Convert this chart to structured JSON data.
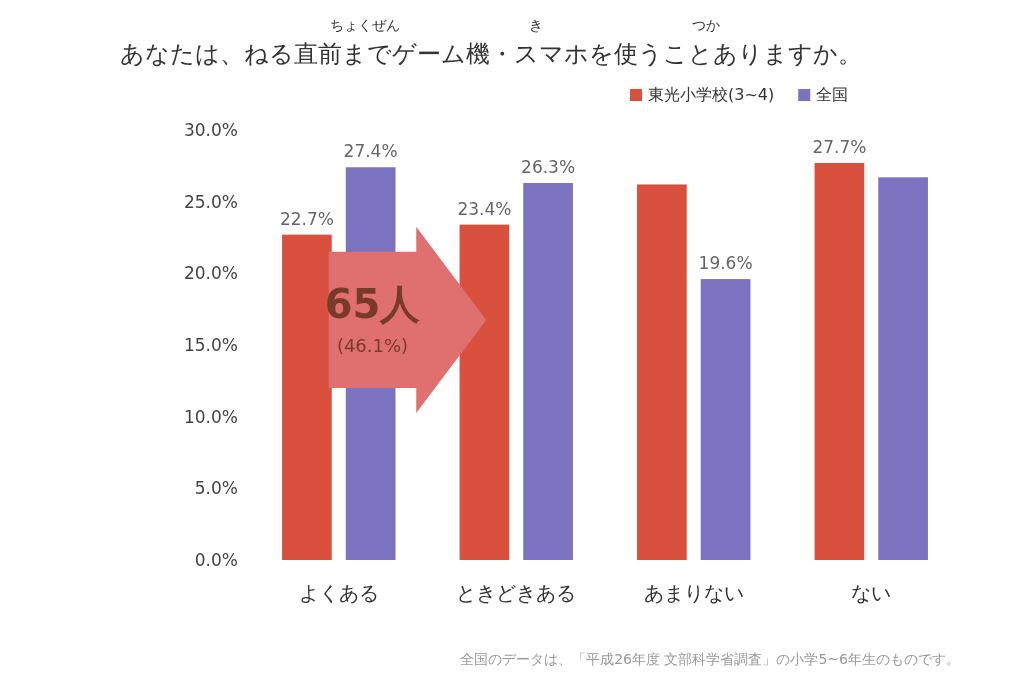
{
  "chart_data": {
    "type": "bar",
    "title": "あなたは、ねる直前までゲーム機・スマホを使うことありますか。",
    "categories": [
      "よくある",
      "ときどきある",
      "あまりない",
      "ない"
    ],
    "series": [
      {
        "name": "東光小学校(3~4)",
        "color": "#d9503f",
        "values": [
          22.7,
          23.4,
          26.2,
          27.7
        ],
        "value_labels": [
          "22.7%",
          "23.4%",
          null,
          "27.7%"
        ]
      },
      {
        "name": "全国",
        "color": "#7b72c0",
        "values": [
          27.4,
          26.3,
          19.6,
          26.7
        ],
        "value_labels": [
          "27.4%",
          "26.3%",
          "19.6%",
          null
        ]
      }
    ],
    "ylim": [
      0,
      30
    ],
    "yticks": [
      {
        "value": 0,
        "label": "0.0%"
      },
      {
        "value": 5,
        "label": "5.0%"
      },
      {
        "value": 10,
        "label": "10.0%"
      },
      {
        "value": 15,
        "label": "15.0%"
      },
      {
        "value": 20,
        "label": "20.0%"
      },
      {
        "value": 25,
        "label": "25.0%"
      },
      {
        "value": 30,
        "label": "30.0%"
      }
    ],
    "grid": false,
    "legend": "top right",
    "annotations": [
      "ちょくぜん",
      "き",
      "つか",
      "65人",
      "(46.1%)",
      "全国のデータは、「平成26年度 文部科学省調査」の小学5~6年生のものです。"
    ]
  }
}
